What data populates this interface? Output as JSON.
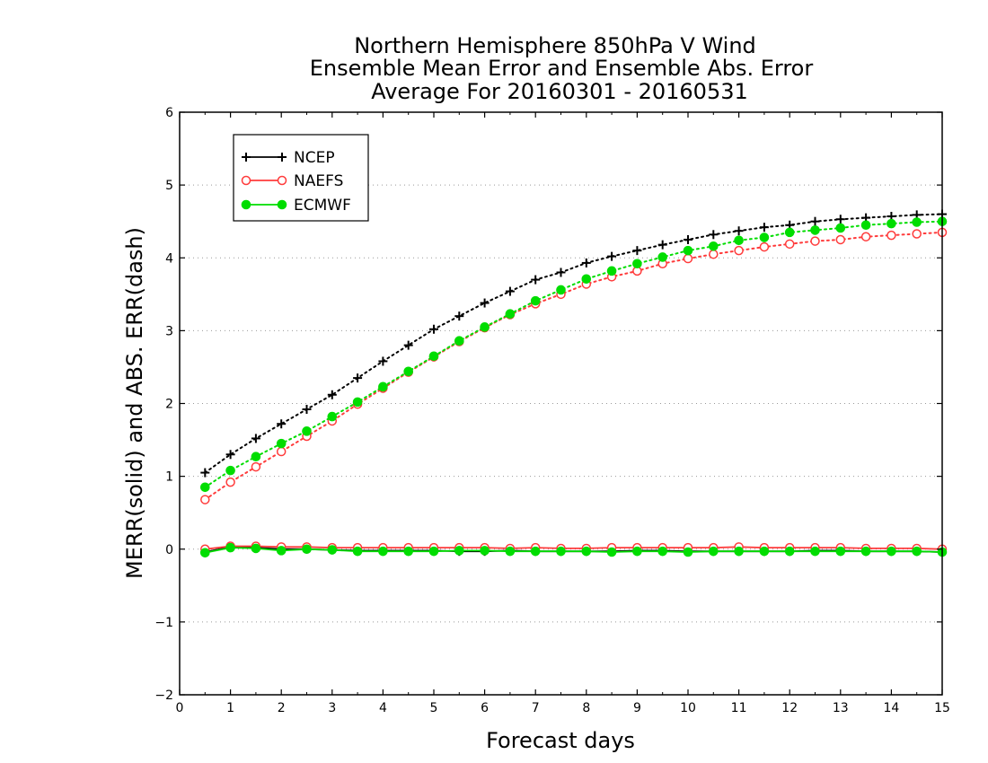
{
  "chart_data": {
    "type": "line",
    "title_lines": [
      "Northern Hemisphere 850hPa V Wind",
      "Ensemble Mean Error and Ensemble Abs. Error",
      "Average For 20160301 - 20160531"
    ],
    "xlabel": "Forecast days",
    "ylabel": "MERR(solid) and ABS. ERR(dash)",
    "xlim": [
      0,
      15
    ],
    "ylim": [
      -2,
      6
    ],
    "x_ticks": [
      "0",
      "1",
      "2",
      "3",
      "4",
      "5",
      "6",
      "7",
      "8",
      "9",
      "10",
      "11",
      "12",
      "13",
      "14",
      "15"
    ],
    "y_ticks": [
      "−2",
      "−1",
      "0",
      "1",
      "2",
      "3",
      "4",
      "5",
      "6"
    ],
    "grid": "horizontal dotted",
    "legend_position": "top-left",
    "x": [
      0.5,
      1,
      1.5,
      2,
      2.5,
      3,
      3.5,
      4,
      4.5,
      5,
      5.5,
      6,
      6.5,
      7,
      7.5,
      8,
      8.5,
      9,
      9.5,
      10,
      10.5,
      11,
      11.5,
      12,
      12.5,
      13,
      13.5,
      14,
      14.5,
      15
    ],
    "series": [
      {
        "name": "NCEP",
        "color": "#000000",
        "marker": "plus",
        "abs_err": [
          1.05,
          1.3,
          1.52,
          1.72,
          1.92,
          2.12,
          2.35,
          2.58,
          2.8,
          3.02,
          3.2,
          3.38,
          3.54,
          3.7,
          3.8,
          3.93,
          4.02,
          4.1,
          4.18,
          4.25,
          4.32,
          4.37,
          4.42,
          4.45,
          4.5,
          4.53,
          4.55,
          4.57,
          4.59,
          4.6
        ],
        "mean_err": [
          -0.04,
          0.03,
          0.02,
          0.0,
          0.0,
          -0.01,
          -0.02,
          -0.02,
          -0.02,
          -0.02,
          -0.03,
          -0.03,
          -0.02,
          -0.03,
          -0.03,
          -0.03,
          -0.03,
          -0.02,
          -0.02,
          -0.03,
          -0.03,
          -0.03,
          -0.03,
          -0.03,
          -0.02,
          -0.02,
          -0.03,
          -0.03,
          -0.03,
          -0.04
        ]
      },
      {
        "name": "NAEFS",
        "color": "#ff3b3b",
        "marker": "open-circle",
        "abs_err": [
          0.68,
          0.92,
          1.13,
          1.34,
          1.55,
          1.76,
          1.99,
          2.21,
          2.43,
          2.64,
          2.85,
          3.04,
          3.22,
          3.37,
          3.5,
          3.64,
          3.74,
          3.82,
          3.92,
          3.99,
          4.05,
          4.1,
          4.15,
          4.19,
          4.23,
          4.25,
          4.29,
          4.31,
          4.33,
          4.35
        ],
        "mean_err": [
          0.0,
          0.04,
          0.04,
          0.03,
          0.03,
          0.02,
          0.02,
          0.02,
          0.02,
          0.02,
          0.02,
          0.02,
          0.01,
          0.02,
          0.01,
          0.01,
          0.02,
          0.02,
          0.02,
          0.02,
          0.02,
          0.03,
          0.02,
          0.02,
          0.02,
          0.02,
          0.01,
          0.01,
          0.01,
          0.0
        ]
      },
      {
        "name": "ECMWF",
        "color": "#00dd00",
        "marker": "filled-circle",
        "abs_err": [
          0.85,
          1.08,
          1.27,
          1.45,
          1.62,
          1.82,
          2.02,
          2.23,
          2.44,
          2.65,
          2.86,
          3.05,
          3.23,
          3.41,
          3.56,
          3.71,
          3.82,
          3.92,
          4.01,
          4.1,
          4.16,
          4.24,
          4.28,
          4.35,
          4.38,
          4.41,
          4.45,
          4.47,
          4.49,
          4.5
        ],
        "mean_err": [
          -0.05,
          0.02,
          0.01,
          -0.02,
          0.0,
          -0.01,
          -0.03,
          -0.03,
          -0.03,
          -0.03,
          -0.02,
          -0.02,
          -0.03,
          -0.03,
          -0.03,
          -0.03,
          -0.04,
          -0.03,
          -0.03,
          -0.04,
          -0.03,
          -0.03,
          -0.03,
          -0.03,
          -0.03,
          -0.03,
          -0.03,
          -0.03,
          -0.03,
          -0.04
        ]
      }
    ]
  }
}
